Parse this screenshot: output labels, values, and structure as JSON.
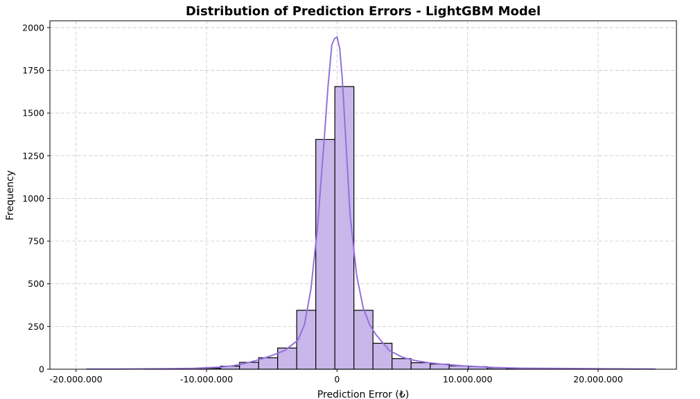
{
  "chart_data": {
    "type": "histogram",
    "title": "Distribution of Prediction Errors - LightGBM Model",
    "xlabel": "Prediction Error (₺)",
    "ylabel": "Frequency",
    "xlim": [
      -22000000,
      26000000
    ],
    "ylim": [
      0,
      2040
    ],
    "xticks": [
      -20000000,
      -10000000,
      0,
      10000000,
      20000000
    ],
    "xtick_labels": [
      "-20.000.000",
      "-10.000.000",
      "0",
      "10.000.000",
      "20.000.000"
    ],
    "yticks": [
      0,
      250,
      500,
      750,
      1000,
      1250,
      1500,
      1750,
      2000
    ],
    "ytick_labels": [
      "0",
      "250",
      "500",
      "750",
      "1000",
      "1250",
      "1500",
      "1750",
      "2000"
    ],
    "grid": true,
    "bin_width": 1460000,
    "bins": [
      {
        "x0": -19150000,
        "count": 0
      },
      {
        "x0": -17690000,
        "count": 0
      },
      {
        "x0": -16230000,
        "count": 0
      },
      {
        "x0": -14770000,
        "count": 1
      },
      {
        "x0": -13310000,
        "count": 2
      },
      {
        "x0": -11850000,
        "count": 4
      },
      {
        "x0": -10390000,
        "count": 6
      },
      {
        "x0": -8930000,
        "count": 18
      },
      {
        "x0": -7470000,
        "count": 40
      },
      {
        "x0": -6010000,
        "count": 67
      },
      {
        "x0": -4550000,
        "count": 124
      },
      {
        "x0": -3090000,
        "count": 345
      },
      {
        "x0": -1630000,
        "count": 1345
      },
      {
        "x0": -170000,
        "count": 1655
      },
      {
        "x0": 1290000,
        "count": 345
      },
      {
        "x0": 2750000,
        "count": 152
      },
      {
        "x0": 4210000,
        "count": 62
      },
      {
        "x0": 5670000,
        "count": 38
      },
      {
        "x0": 7130000,
        "count": 30
      },
      {
        "x0": 8590000,
        "count": 20
      },
      {
        "x0": 10050000,
        "count": 15
      },
      {
        "x0": 11510000,
        "count": 8
      },
      {
        "x0": 12970000,
        "count": 5
      },
      {
        "x0": 14430000,
        "count": 4
      },
      {
        "x0": 15890000,
        "count": 3
      },
      {
        "x0": 17350000,
        "count": 2
      },
      {
        "x0": 18810000,
        "count": 2
      },
      {
        "x0": 20270000,
        "count": 1
      },
      {
        "x0": 21730000,
        "count": 1
      },
      {
        "x0": 23190000,
        "count": 0
      }
    ],
    "kde": {
      "x": [
        -19200000,
        -17000000,
        -15000000,
        -13000000,
        -11000000,
        -9000000,
        -8000000,
        -7000000,
        -6000000,
        -5000000,
        -4000000,
        -3000000,
        -2500000,
        -2000000,
        -1500000,
        -1000000,
        -700000,
        -400000,
        -200000,
        0,
        200000,
        400000,
        700000,
        1000000,
        1500000,
        2000000,
        2500000,
        3000000,
        4000000,
        5000000,
        6000000,
        7000000,
        8000000,
        9000000,
        10000000,
        12000000,
        14000000,
        16000000,
        18000000,
        20000000,
        22000000,
        24400000
      ],
      "y": [
        1,
        1,
        2,
        3,
        5,
        12,
        20,
        35,
        55,
        80,
        110,
        170,
        260,
        470,
        830,
        1330,
        1650,
        1900,
        1935,
        1945,
        1880,
        1700,
        1300,
        900,
        550,
        360,
        260,
        200,
        110,
        70,
        50,
        38,
        30,
        24,
        18,
        10,
        6,
        5,
        4,
        3,
        2,
        1
      ]
    },
    "colors": {
      "bar_fill": "#c9b7ea",
      "bar_edge": "#000000",
      "kde_line": "#9370db"
    }
  }
}
